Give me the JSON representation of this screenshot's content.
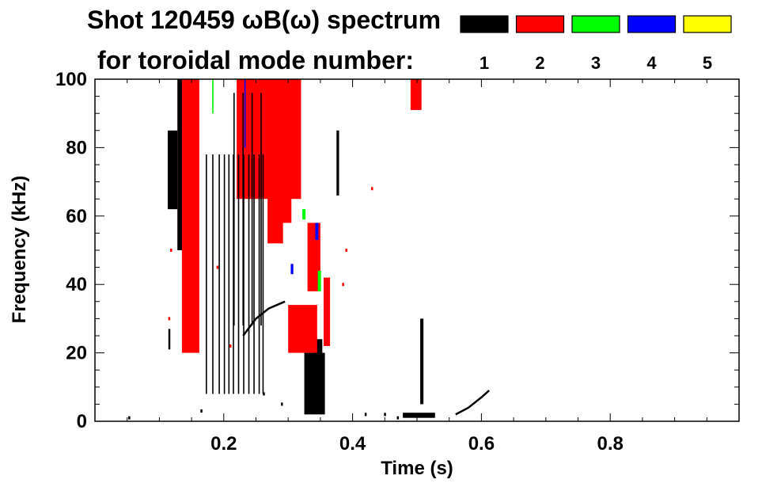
{
  "chart_data": {
    "type": "heatmap",
    "title_line1": "Shot 120459 ωB(ω) spectrum",
    "title_line2": "for toroidal mode number:",
    "xlabel": "Time (s)",
    "ylabel": "Frequency (kHz)",
    "xlim": [
      0.0,
      1.0
    ],
    "ylim": [
      0,
      100
    ],
    "x_ticks": [
      "0.2",
      "0.4",
      "0.6",
      "0.8"
    ],
    "x_tick_values": [
      0.2,
      0.4,
      0.6,
      0.8
    ],
    "y_ticks": [
      "0",
      "20",
      "40",
      "60",
      "80",
      "100"
    ],
    "y_tick_values": [
      0,
      20,
      40,
      60,
      80,
      100
    ],
    "legend": [
      {
        "label": "1",
        "color": "#000000"
      },
      {
        "label": "2",
        "color": "#ff0000"
      },
      {
        "label": "3",
        "color": "#00ff00"
      },
      {
        "label": "4",
        "color": "#0000ff"
      },
      {
        "label": "5",
        "color": "#ffff00"
      }
    ],
    "regions": [
      {
        "mode": 1,
        "t": [
          0.113,
          0.128
        ],
        "f": [
          62,
          85
        ]
      },
      {
        "mode": 1,
        "t": [
          0.128,
          0.145
        ],
        "f": [
          50,
          100
        ]
      },
      {
        "mode": 1,
        "t": [
          0.145,
          0.155
        ],
        "f": [
          36,
          100
        ]
      },
      {
        "mode": 1,
        "t": [
          0.114,
          0.117
        ],
        "f": [
          21,
          27
        ]
      },
      {
        "mode": 1,
        "t": [
          0.325,
          0.357
        ],
        "f": [
          2,
          20
        ]
      },
      {
        "mode": 1,
        "t": [
          0.338,
          0.353
        ],
        "f": [
          18,
          24
        ]
      },
      {
        "mode": 1,
        "t": [
          0.375,
          0.379
        ],
        "f": [
          66,
          85
        ]
      },
      {
        "mode": 1,
        "t": [
          0.478,
          0.528
        ],
        "f": [
          1,
          2.5
        ]
      },
      {
        "mode": 1,
        "t": [
          0.505,
          0.51
        ],
        "f": [
          5,
          30
        ]
      },
      {
        "mode": 2,
        "t": [
          0.135,
          0.162
        ],
        "f": [
          20,
          100
        ]
      },
      {
        "mode": 2,
        "t": [
          0.22,
          0.32
        ],
        "f": [
          65,
          100
        ]
      },
      {
        "mode": 2,
        "t": [
          0.268,
          0.292
        ],
        "f": [
          52,
          71
        ]
      },
      {
        "mode": 2,
        "t": [
          0.29,
          0.305
        ],
        "f": [
          58,
          68
        ]
      },
      {
        "mode": 2,
        "t": [
          0.3,
          0.345
        ],
        "f": [
          20,
          34
        ]
      },
      {
        "mode": 2,
        "t": [
          0.33,
          0.35
        ],
        "f": [
          38,
          58
        ]
      },
      {
        "mode": 2,
        "t": [
          0.355,
          0.365
        ],
        "f": [
          22,
          42
        ]
      },
      {
        "mode": 2,
        "t": [
          0.49,
          0.507
        ],
        "f": [
          91,
          100
        ]
      },
      {
        "mode": 3,
        "t": [
          0.182,
          0.184
        ],
        "f": [
          90,
          100
        ]
      },
      {
        "mode": 3,
        "t": [
          0.322,
          0.327
        ],
        "f": [
          59,
          62
        ]
      },
      {
        "mode": 3,
        "t": [
          0.346,
          0.351
        ],
        "f": [
          38,
          44
        ]
      },
      {
        "mode": 4,
        "t": [
          0.232,
          0.234
        ],
        "f": [
          80,
          100
        ]
      },
      {
        "mode": 4,
        "t": [
          0.342,
          0.347
        ],
        "f": [
          53,
          58
        ]
      },
      {
        "mode": 4,
        "t": [
          0.304,
          0.308
        ],
        "f": [
          43,
          46
        ]
      }
    ],
    "vertical_streaks": [
      {
        "mode": 1,
        "t": [
          0.172,
          0.182,
          0.192,
          0.2,
          0.207,
          0.214,
          0.222,
          0.23,
          0.238,
          0.246,
          0.254,
          0.26
        ],
        "f": [
          8,
          78
        ]
      },
      {
        "mode": 1,
        "t": [
          0.215,
          0.229,
          0.243,
          0.257
        ],
        "f": [
          28,
          96
        ]
      }
    ],
    "curves": [
      {
        "mode": 1,
        "t": [
          0.23,
          0.25,
          0.27,
          0.295
        ],
        "f": [
          25,
          30,
          33,
          35
        ]
      },
      {
        "mode": 1,
        "t": [
          0.56,
          0.58,
          0.6,
          0.612
        ],
        "f": [
          2,
          4,
          7,
          9
        ]
      }
    ],
    "specks": [
      {
        "mode": 1,
        "t": [
          0.053,
          0.165,
          0.262,
          0.29,
          0.42,
          0.45,
          0.47
        ],
        "f": [
          1,
          3,
          8,
          5,
          2,
          2,
          1
        ]
      },
      {
        "mode": 2,
        "t": [
          0.115,
          0.118,
          0.19,
          0.21,
          0.385,
          0.39,
          0.43
        ],
        "f": [
          30,
          50,
          45,
          22,
          40,
          50,
          68
        ]
      }
    ]
  }
}
